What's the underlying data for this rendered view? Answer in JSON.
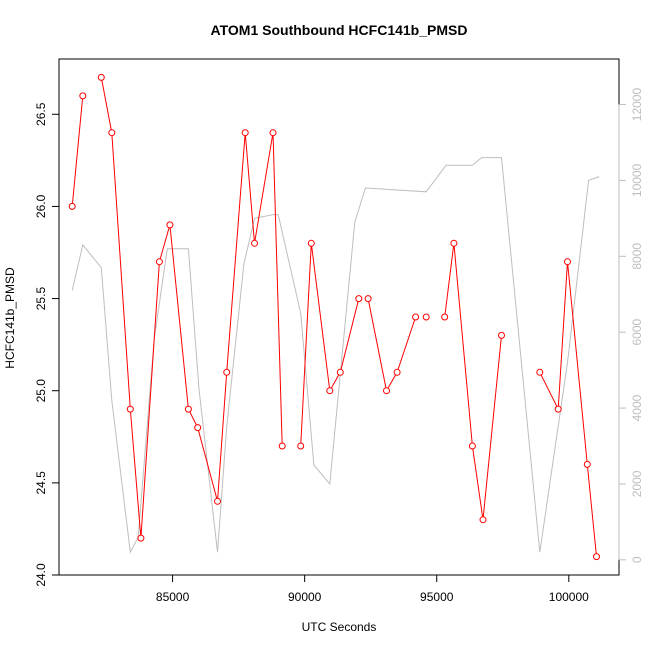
{
  "chart_data": {
    "type": "line",
    "title": "ATOM1 Southbound HCFC141b_PMSD",
    "xlabel": "UTC Seconds",
    "ylabel": "HCFC141b_PMSD",
    "xlim": [
      80700,
      101900
    ],
    "ylim": [
      24.0,
      26.8
    ],
    "y2lim": [
      -400,
      13200
    ],
    "x_ticks": [
      85000,
      90000,
      95000,
      100000
    ],
    "x_tick_labels": [
      "85000",
      "90000",
      "95000",
      "100000"
    ],
    "y_ticks": [
      24.0,
      24.5,
      25.0,
      25.5,
      26.0,
      26.5
    ],
    "y_tick_labels": [
      "24.0",
      "24.5",
      "25.0",
      "25.5",
      "26.0",
      "26.5"
    ],
    "y2_ticks": [
      0,
      2000,
      4000,
      6000,
      8000,
      10000,
      12000
    ],
    "y2_tick_labels": [
      "0",
      "2000",
      "4000",
      "6000",
      "8000",
      "10000",
      "12000"
    ],
    "grid": false,
    "series": [
      {
        "color": "#ff0000",
        "marker": "open-circle",
        "axis": "left",
        "segments": [
          [
            [
              81200,
              26.0
            ],
            [
              81600,
              26.6
            ]
          ],
          [
            [
              82300,
              26.7
            ],
            [
              82700,
              26.4
            ],
            [
              83400,
              24.9
            ],
            [
              83800,
              24.2
            ],
            [
              84500,
              25.7
            ],
            [
              84900,
              25.9
            ],
            [
              85600,
              24.9
            ],
            [
              85950,
              24.8
            ],
            [
              86700,
              24.4
            ],
            [
              87050,
              25.1
            ],
            [
              87750,
              26.4
            ],
            [
              88100,
              25.8
            ],
            [
              88800,
              26.4
            ],
            [
              89150,
              24.7
            ]
          ],
          [
            [
              89850,
              24.7
            ],
            [
              90250,
              25.8
            ],
            [
              90950,
              25.0
            ],
            [
              91350,
              25.1
            ],
            [
              92050,
              25.5
            ]
          ],
          [
            [
              92400,
              25.5
            ],
            [
              93100,
              25.0
            ],
            [
              93500,
              25.1
            ],
            [
              94200,
              25.4
            ]
          ],
          [
            [
              94600,
              25.4
            ]
          ],
          [
            [
              95300,
              25.4
            ],
            [
              95650,
              25.8
            ],
            [
              96350,
              24.7
            ],
            [
              96750,
              24.3
            ],
            [
              97450,
              25.3
            ]
          ],
          [
            [
              98900,
              25.1
            ],
            [
              99600,
              24.9
            ],
            [
              99950,
              25.7
            ],
            [
              100700,
              24.6
            ],
            [
              101050,
              24.1
            ]
          ]
        ]
      },
      {
        "color": "#bebebe",
        "marker": "none",
        "axis": "right",
        "segments": [
          [
            [
              81200,
              7100
            ],
            [
              81600,
              8300
            ],
            [
              82300,
              7700
            ],
            [
              82700,
              4200
            ],
            [
              83400,
              200
            ],
            [
              83700,
              600
            ],
            [
              84300,
              5800
            ],
            [
              84800,
              8200
            ],
            [
              85600,
              8200
            ],
            [
              86000,
              4500
            ],
            [
              86700,
              200
            ],
            [
              87050,
              3500
            ],
            [
              87700,
              7800
            ],
            [
              88100,
              9000
            ],
            [
              88800,
              9100
            ],
            [
              89000,
              9100
            ],
            [
              89850,
              6500
            ],
            [
              90350,
              2500
            ],
            [
              90950,
              2000
            ],
            [
              91900,
              8900
            ],
            [
              92300,
              9800
            ],
            [
              94600,
              9700
            ],
            [
              95350,
              10400
            ],
            [
              96350,
              10400
            ],
            [
              96700,
              10600
            ],
            [
              97450,
              10600
            ],
            [
              98900,
              200
            ],
            [
              99950,
              5200
            ],
            [
              100750,
              10000
            ],
            [
              101150,
              10100
            ]
          ]
        ]
      }
    ]
  }
}
